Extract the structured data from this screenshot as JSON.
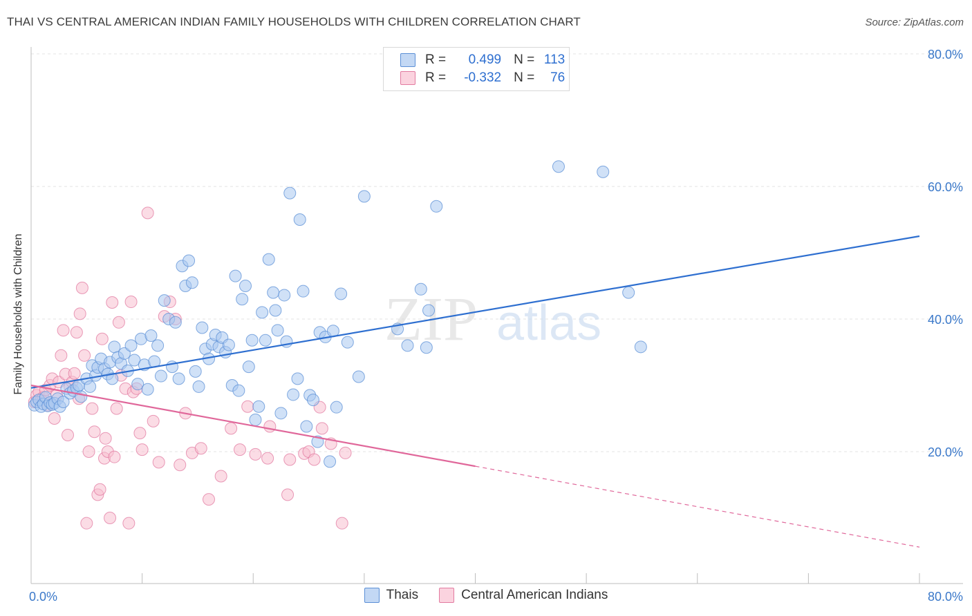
{
  "title": "THAI VS CENTRAL AMERICAN INDIAN FAMILY HOUSEHOLDS WITH CHILDREN CORRELATION CHART",
  "source": "Source: ZipAtlas.com",
  "watermark": {
    "zip": "ZIP",
    "atlas": "atlas"
  },
  "legend": {
    "r_label": "R =",
    "n_label": "N =",
    "rows": [
      {
        "r": "0.499",
        "n": "113",
        "color": "#a9c8f0",
        "border": "#5b8fd6"
      },
      {
        "r": "-0.332",
        "n": "76",
        "color": "#f7bfd0",
        "border": "#e27aa0"
      }
    ]
  },
  "bottom_legend": [
    {
      "label": "Thais",
      "color": "#a9c8f0",
      "border": "#5b8fd6"
    },
    {
      "label": "Central American Indians",
      "color": "#f7bfd0",
      "border": "#e27aa0"
    }
  ],
  "chart_data": {
    "type": "scatter",
    "title": "THAI VS CENTRAL AMERICAN INDIAN FAMILY HOUSEHOLDS WITH CHILDREN CORRELATION CHART",
    "xlabel": "",
    "ylabel": "Family Households with Children",
    "xlim": [
      0,
      80
    ],
    "ylim": [
      0,
      84
    ],
    "x_tick_labels": [
      "0.0%",
      "80.0%"
    ],
    "y_ticks": [
      20,
      40,
      60,
      80
    ],
    "y_tick_labels": [
      "20.0%",
      "40.0%",
      "60.0%",
      "80.0%"
    ],
    "grid": true,
    "legend_position": "top-center",
    "series": [
      {
        "name": "Thais",
        "color": "#5b8fd6",
        "fill": "#a9c8f0",
        "trend": {
          "x": [
            0,
            80
          ],
          "y": [
            29.6,
            52.5
          ],
          "color": "#2e6fd0",
          "dashed_from": null
        },
        "points": [
          [
            0.3,
            27
          ],
          [
            0.5,
            27.5
          ],
          [
            0.7,
            27.8
          ],
          [
            0.9,
            26.8
          ],
          [
            1.1,
            27.2
          ],
          [
            1.3,
            28.2
          ],
          [
            1.5,
            26.9
          ],
          [
            1.7,
            27.4
          ],
          [
            1.9,
            27.1
          ],
          [
            2.1,
            27.3
          ],
          [
            2.4,
            28
          ],
          [
            2.6,
            26.8
          ],
          [
            2.9,
            27.5
          ],
          [
            3.2,
            29.5
          ],
          [
            3.5,
            28.8
          ],
          [
            3.8,
            29.2
          ],
          [
            4.1,
            29.6
          ],
          [
            4.3,
            30
          ],
          [
            4.5,
            28.3
          ],
          [
            5,
            31
          ],
          [
            5.3,
            29.8
          ],
          [
            5.5,
            33
          ],
          [
            5.8,
            31.5
          ],
          [
            6,
            32.7
          ],
          [
            6.3,
            34
          ],
          [
            6.6,
            32.5
          ],
          [
            6.9,
            31.7
          ],
          [
            7.1,
            33.5
          ],
          [
            7.3,
            31
          ],
          [
            7.5,
            35.8
          ],
          [
            7.8,
            34.2
          ],
          [
            8.1,
            33.3
          ],
          [
            8.4,
            34.8
          ],
          [
            8.7,
            32.2
          ],
          [
            9,
            36
          ],
          [
            9.3,
            33.8
          ],
          [
            9.6,
            30.2
          ],
          [
            9.9,
            37
          ],
          [
            10.2,
            33.1
          ],
          [
            10.5,
            29.4
          ],
          [
            10.8,
            37.5
          ],
          [
            11.1,
            33.6
          ],
          [
            11.4,
            36
          ],
          [
            11.7,
            31.4
          ],
          [
            12,
            42.8
          ],
          [
            12.4,
            40
          ],
          [
            12.7,
            32.8
          ],
          [
            13,
            39.5
          ],
          [
            13.3,
            31
          ],
          [
            13.6,
            48
          ],
          [
            13.9,
            45
          ],
          [
            14.2,
            48.8
          ],
          [
            14.5,
            45.5
          ],
          [
            14.8,
            32.1
          ],
          [
            15.1,
            29.8
          ],
          [
            15.4,
            38.7
          ],
          [
            15.7,
            35.5
          ],
          [
            16,
            34
          ],
          [
            16.3,
            36.2
          ],
          [
            16.6,
            37.6
          ],
          [
            16.9,
            35.8
          ],
          [
            17.2,
            37.2
          ],
          [
            17.5,
            35
          ],
          [
            17.8,
            36.1
          ],
          [
            18.1,
            30
          ],
          [
            18.4,
            46.5
          ],
          [
            18.7,
            29.2
          ],
          [
            19,
            43
          ],
          [
            19.3,
            45
          ],
          [
            19.6,
            32.8
          ],
          [
            19.9,
            36.8
          ],
          [
            20.2,
            24.8
          ],
          [
            20.5,
            26.8
          ],
          [
            20.8,
            41
          ],
          [
            21.1,
            36.8
          ],
          [
            21.4,
            49
          ],
          [
            21.8,
            44
          ],
          [
            22,
            41.3
          ],
          [
            22.2,
            38.3
          ],
          [
            22.5,
            25.8
          ],
          [
            22.8,
            43.6
          ],
          [
            23,
            36.6
          ],
          [
            23.3,
            59
          ],
          [
            23.6,
            28.6
          ],
          [
            24,
            31
          ],
          [
            24.2,
            55
          ],
          [
            24.5,
            44.2
          ],
          [
            24.8,
            23.8
          ],
          [
            25.1,
            28.5
          ],
          [
            25.4,
            27.8
          ],
          [
            25.8,
            21.5
          ],
          [
            26,
            38
          ],
          [
            26.5,
            37.3
          ],
          [
            26.9,
            18.5
          ],
          [
            27.2,
            38.2
          ],
          [
            27.5,
            26.7
          ],
          [
            27.9,
            43.8
          ],
          [
            28.5,
            36.5
          ],
          [
            29.5,
            31.3
          ],
          [
            30,
            58.5
          ],
          [
            33,
            38.5
          ],
          [
            33.9,
            36
          ],
          [
            35.1,
            44.5
          ],
          [
            35.6,
            35.7
          ],
          [
            35.8,
            41.3
          ],
          [
            36.5,
            57
          ],
          [
            47.5,
            63
          ],
          [
            51.5,
            62.2
          ],
          [
            53.8,
            44
          ],
          [
            54.9,
            35.8
          ]
        ]
      },
      {
        "name": "Central American Indians",
        "color": "#e27aa0",
        "fill": "#f7bfd0",
        "trend": {
          "x": [
            0,
            40,
            80
          ],
          "y": [
            30,
            17.8,
            5.6
          ],
          "color": "#e0679a",
          "dashed_from": 40
        },
        "points": [
          [
            0.3,
            27.5
          ],
          [
            0.5,
            28.5
          ],
          [
            0.7,
            29
          ],
          [
            0.9,
            27.8
          ],
          [
            1.1,
            28.2
          ],
          [
            1.3,
            29.3
          ],
          [
            1.5,
            27
          ],
          [
            1.7,
            30
          ],
          [
            1.9,
            31
          ],
          [
            2.1,
            25
          ],
          [
            2.3,
            28.5
          ],
          [
            2.5,
            30.5
          ],
          [
            2.7,
            34.5
          ],
          [
            2.9,
            38.3
          ],
          [
            3.1,
            31.7
          ],
          [
            3.3,
            22.5
          ],
          [
            3.5,
            29.7
          ],
          [
            3.7,
            30.5
          ],
          [
            3.9,
            31.8
          ],
          [
            4.1,
            38
          ],
          [
            4.3,
            28
          ],
          [
            4.4,
            40.8
          ],
          [
            4.6,
            44.7
          ],
          [
            4.8,
            34.5
          ],
          [
            5,
            9.2
          ],
          [
            5.2,
            20
          ],
          [
            5.5,
            26.5
          ],
          [
            5.7,
            23
          ],
          [
            6,
            13.5
          ],
          [
            6.2,
            14.3
          ],
          [
            6.4,
            37
          ],
          [
            6.6,
            19
          ],
          [
            6.7,
            22
          ],
          [
            6.9,
            20
          ],
          [
            7.1,
            10
          ],
          [
            7.3,
            42.5
          ],
          [
            7.5,
            19.2
          ],
          [
            7.7,
            26.5
          ],
          [
            7.9,
            39.5
          ],
          [
            8.1,
            31.5
          ],
          [
            8.5,
            29.5
          ],
          [
            8.8,
            9.2
          ],
          [
            9,
            42.6
          ],
          [
            9.2,
            29
          ],
          [
            9.5,
            29.5
          ],
          [
            9.8,
            22.8
          ],
          [
            10,
            20.3
          ],
          [
            10.5,
            56
          ],
          [
            11,
            24.6
          ],
          [
            11.5,
            18.4
          ],
          [
            12,
            40.4
          ],
          [
            12.5,
            42.6
          ],
          [
            13,
            40
          ],
          [
            13.4,
            18
          ],
          [
            13.9,
            25.8
          ],
          [
            14.5,
            19.8
          ],
          [
            15.3,
            20.5
          ],
          [
            16,
            12.8
          ],
          [
            17.1,
            16.3
          ],
          [
            18,
            23.5
          ],
          [
            18.8,
            20.3
          ],
          [
            19.5,
            26.8
          ],
          [
            20.2,
            19.6
          ],
          [
            21.3,
            19
          ],
          [
            21.5,
            23.8
          ],
          [
            23.1,
            13.5
          ],
          [
            23.3,
            18.8
          ],
          [
            24.6,
            19.7
          ],
          [
            25,
            20
          ],
          [
            25.5,
            18.8
          ],
          [
            26,
            26.7
          ],
          [
            26.2,
            23.5
          ],
          [
            27,
            21.2
          ],
          [
            28,
            9.2
          ],
          [
            28.3,
            19.8
          ]
        ]
      }
    ]
  }
}
